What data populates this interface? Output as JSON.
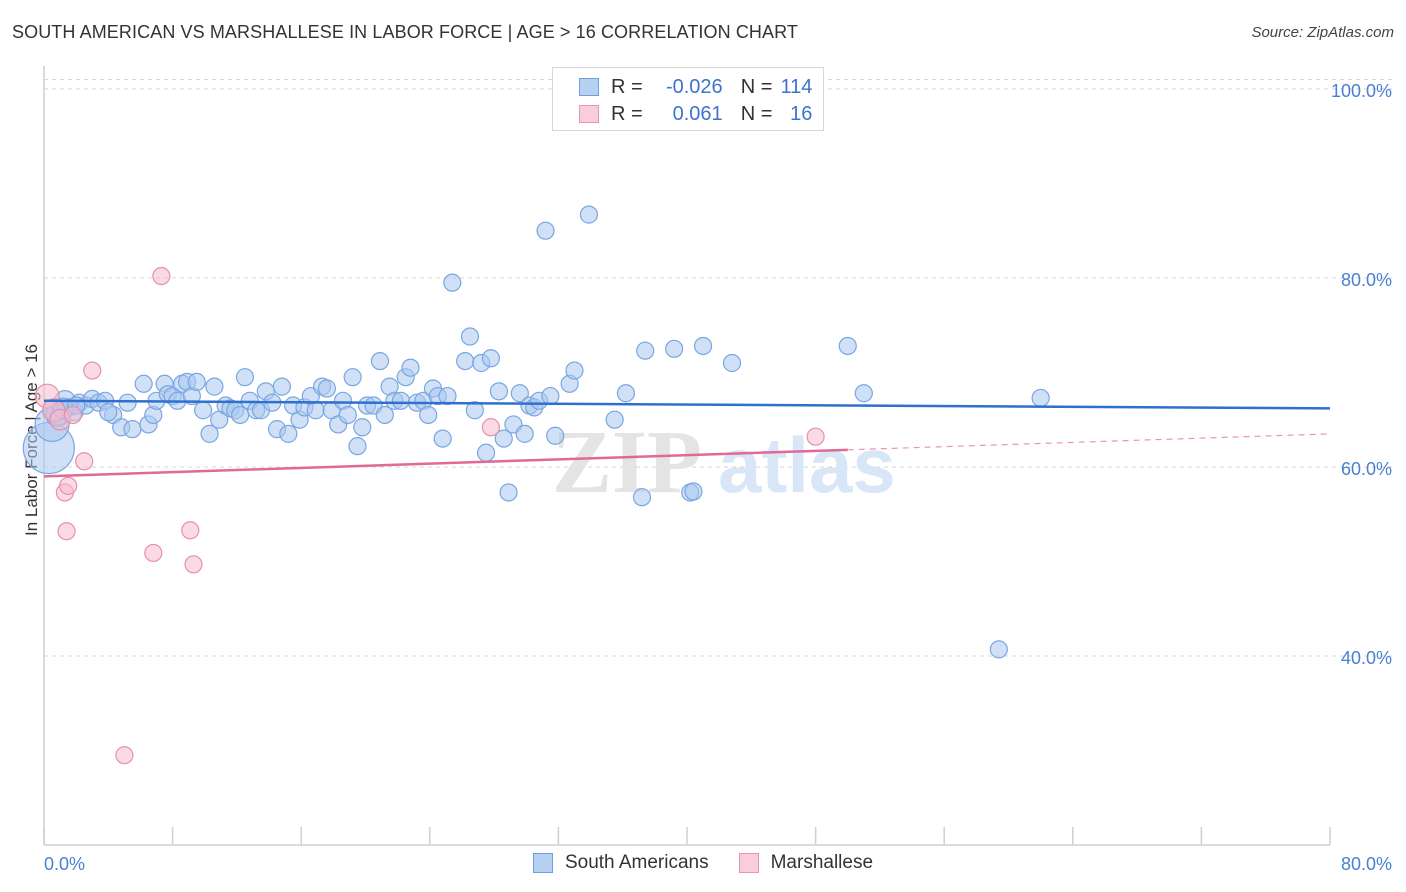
{
  "header": {
    "title": "SOUTH AMERICAN VS MARSHALLESE IN LABOR FORCE | AGE > 16 CORRELATION CHART",
    "source": "Source: ZipAtlas.com"
  },
  "legend": {
    "rows": [
      {
        "r_label": "R =",
        "r_value": "-0.026",
        "n_label": "N =",
        "n_value": "114"
      },
      {
        "r_label": "R =",
        "r_value": "0.061",
        "n_label": "N =",
        "n_value": "16"
      }
    ]
  },
  "bottom_legend": {
    "items": [
      {
        "label": "South Americans"
      },
      {
        "label": "Marshallese"
      }
    ]
  },
  "colors": {
    "blue_fill": "#a9c8f0",
    "blue_stroke": "#7aa6e0",
    "blue_line": "#2f6fd0",
    "pink_fill": "#f6bccd",
    "pink_stroke": "#e890ab",
    "pink_line": "#e06a93",
    "grid": "#d6d6d6",
    "tick_text": "#4a7fd4"
  },
  "watermark": {
    "zip": "ZIP",
    "atlas": "atlas"
  },
  "chart_data": {
    "type": "scatter",
    "title": "SOUTH AMERICAN VS MARSHALLESE IN LABOR FORCE | AGE > 16 CORRELATION CHART",
    "xlabel": "",
    "ylabel": "In Labor Force | Age > 16",
    "xlim": [
      0,
      80
    ],
    "ylim": [
      20,
      102
    ],
    "x_tick_labels": [
      "0.0%",
      "80.0%"
    ],
    "y_ticks": [
      40,
      60,
      80,
      100
    ],
    "y_tick_labels": [
      "40.0%",
      "60.0%",
      "80.0%",
      "100.0%"
    ],
    "series": [
      {
        "name": "South Americans",
        "R": -0.026,
        "N": 114,
        "trend": {
          "x": [
            0,
            80
          ],
          "y": [
            67.0,
            66.2
          ],
          "dashed_from": null
        },
        "points": [
          [
            0.3,
            62.0,
            3
          ],
          [
            0.5,
            64.5,
            2
          ],
          [
            0.7,
            66.0,
            1.4
          ],
          [
            1.0,
            65.5,
            1.2
          ],
          [
            1.3,
            67.0,
            1.2
          ],
          [
            1.6,
            66.3,
            1
          ],
          [
            1.9,
            65.8,
            1
          ],
          [
            2.2,
            66.8,
            1
          ],
          [
            2.6,
            66.5,
            1
          ],
          [
            3.0,
            67.2,
            1
          ],
          [
            3.4,
            66.8,
            1
          ],
          [
            3.8,
            67.0,
            1
          ],
          [
            4.3,
            65.5,
            1
          ],
          [
            4.8,
            64.2,
            1
          ],
          [
            5.2,
            66.8,
            1
          ],
          [
            5.5,
            64.0,
            1
          ],
          [
            6.2,
            68.8,
            1
          ],
          [
            6.5,
            64.5,
            1
          ],
          [
            6.8,
            65.5,
            1
          ],
          [
            7.0,
            67.0,
            1
          ],
          [
            7.5,
            68.8,
            1
          ],
          [
            7.7,
            67.7,
            1
          ],
          [
            8.0,
            67.5,
            1
          ],
          [
            8.3,
            67.0,
            1
          ],
          [
            8.6,
            68.8,
            1
          ],
          [
            8.9,
            69.0,
            1
          ],
          [
            9.2,
            67.5,
            1
          ],
          [
            9.5,
            69.0,
            1
          ],
          [
            9.9,
            66.0,
            1
          ],
          [
            10.3,
            63.5,
            1
          ],
          [
            10.6,
            68.5,
            1
          ],
          [
            10.9,
            65.0,
            1
          ],
          [
            11.3,
            66.5,
            1
          ],
          [
            11.6,
            66.2,
            1
          ],
          [
            11.9,
            66.0,
            1
          ],
          [
            12.2,
            65.5,
            1
          ],
          [
            12.5,
            69.5,
            1
          ],
          [
            12.8,
            67.0,
            1
          ],
          [
            13.2,
            66.0,
            1
          ],
          [
            13.5,
            66.0,
            1
          ],
          [
            13.8,
            68.0,
            1
          ],
          [
            14.2,
            66.8,
            1
          ],
          [
            14.5,
            64.0,
            1
          ],
          [
            14.8,
            68.5,
            1
          ],
          [
            15.2,
            63.5,
            1
          ],
          [
            15.5,
            66.5,
            1
          ],
          [
            15.9,
            65.0,
            1
          ],
          [
            16.2,
            66.3,
            1
          ],
          [
            16.6,
            67.5,
            1
          ],
          [
            16.9,
            66.0,
            1
          ],
          [
            17.3,
            68.5,
            1
          ],
          [
            17.6,
            68.3,
            1
          ],
          [
            17.9,
            66.0,
            1
          ],
          [
            18.3,
            64.5,
            1
          ],
          [
            18.6,
            67.0,
            1
          ],
          [
            18.9,
            65.5,
            1
          ],
          [
            19.2,
            69.5,
            1
          ],
          [
            19.5,
            62.2,
            1
          ],
          [
            19.8,
            64.2,
            1
          ],
          [
            20.1,
            66.5,
            1
          ],
          [
            20.5,
            66.5,
            1
          ],
          [
            20.9,
            71.2,
            1
          ],
          [
            21.2,
            65.5,
            1
          ],
          [
            21.5,
            68.5,
            1
          ],
          [
            21.8,
            67.0,
            1
          ],
          [
            22.2,
            67.0,
            1
          ],
          [
            22.5,
            69.5,
            1
          ],
          [
            22.8,
            70.5,
            1
          ],
          [
            23.2,
            66.8,
            1
          ],
          [
            23.6,
            67.0,
            1
          ],
          [
            23.9,
            65.5,
            1
          ],
          [
            24.2,
            68.3,
            1
          ],
          [
            24.5,
            67.5,
            1
          ],
          [
            24.8,
            63.0,
            1
          ],
          [
            25.1,
            67.5,
            1
          ],
          [
            25.4,
            79.5,
            1
          ],
          [
            26.2,
            71.2,
            1
          ],
          [
            26.5,
            73.8,
            1
          ],
          [
            26.8,
            66.0,
            1
          ],
          [
            27.2,
            71.0,
            1
          ],
          [
            27.5,
            61.5,
            1
          ],
          [
            27.8,
            71.5,
            1
          ],
          [
            28.3,
            68.0,
            1
          ],
          [
            28.6,
            63.0,
            1
          ],
          [
            28.9,
            57.3,
            1
          ],
          [
            29.2,
            64.5,
            1
          ],
          [
            29.6,
            67.8,
            1
          ],
          [
            29.9,
            63.5,
            1
          ],
          [
            30.2,
            66.5,
            1
          ],
          [
            30.5,
            66.3,
            1
          ],
          [
            30.8,
            67.0,
            1
          ],
          [
            31.2,
            85.0,
            1
          ],
          [
            31.5,
            67.5,
            1
          ],
          [
            31.8,
            63.3,
            1
          ],
          [
            32.7,
            68.8,
            1
          ],
          [
            33.0,
            70.2,
            1
          ],
          [
            33.9,
            86.7,
            1
          ],
          [
            35.5,
            65.0,
            1
          ],
          [
            36.2,
            67.8,
            1
          ],
          [
            37.2,
            56.8,
            1
          ],
          [
            37.4,
            72.3,
            1
          ],
          [
            39.2,
            72.5,
            1
          ],
          [
            40.2,
            57.3,
            1
          ],
          [
            40.4,
            57.4,
            1
          ],
          [
            41.0,
            72.8,
            1
          ],
          [
            42.8,
            71.0,
            1
          ],
          [
            50.0,
            72.8,
            1
          ],
          [
            51.0,
            67.8,
            1
          ],
          [
            59.4,
            40.7,
            1
          ],
          [
            62.0,
            67.3,
            1
          ],
          [
            0.8,
            65.5,
            1.3
          ],
          [
            1.2,
            66.2,
            1.2
          ],
          [
            2.0,
            66.5,
            1
          ],
          [
            4.0,
            65.8,
            1
          ]
        ]
      },
      {
        "name": "Marshallese",
        "R": 0.061,
        "N": 16,
        "trend": {
          "x": [
            0,
            80
          ],
          "y": [
            59.0,
            63.5
          ],
          "dashed_from": 50
        },
        "points": [
          [
            0.2,
            67.5,
            1.4
          ],
          [
            0.6,
            66.0,
            1.3
          ],
          [
            1.0,
            65.0,
            1.2
          ],
          [
            1.3,
            57.3,
            1
          ],
          [
            1.5,
            58.0,
            1
          ],
          [
            1.4,
            53.2,
            1
          ],
          [
            1.8,
            65.5,
            1
          ],
          [
            2.5,
            60.6,
            1
          ],
          [
            3.0,
            70.2,
            1
          ],
          [
            5.0,
            29.5,
            1
          ],
          [
            6.8,
            50.9,
            1
          ],
          [
            7.3,
            80.2,
            1
          ],
          [
            9.1,
            53.3,
            1
          ],
          [
            9.3,
            49.7,
            1
          ],
          [
            27.8,
            64.2,
            1
          ],
          [
            48.0,
            63.2,
            1
          ]
        ]
      }
    ]
  }
}
